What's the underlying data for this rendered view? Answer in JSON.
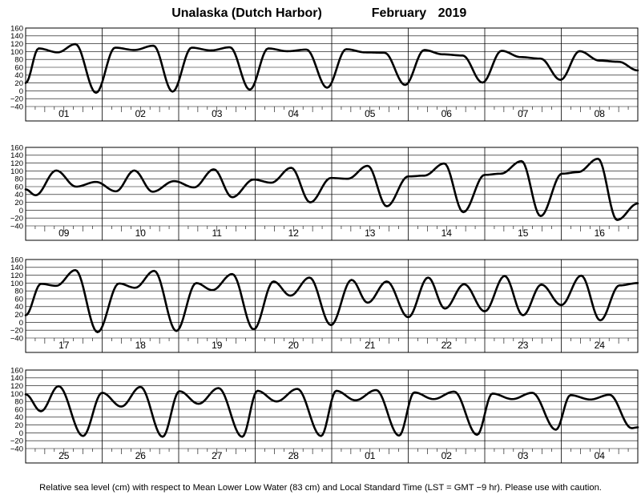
{
  "header": {
    "station": "Unalaska (Dutch Harbor)",
    "month": "February",
    "year": "2019"
  },
  "footer": {
    "note": "Relative sea level (cm) with respect to Mean Lower Low Water (83 cm) and Local Standard Time (LST = GMT −9 hr). Please use with caution."
  },
  "chart_data": [
    {
      "type": "line",
      "title": "",
      "xlabel": "",
      "ylabel": "",
      "ylim": [
        -40,
        160
      ],
      "yticks": [
        "−40",
        "−20",
        "0",
        "20",
        "40",
        "60",
        "80",
        "100",
        "120",
        "140",
        "160"
      ],
      "grid": true,
      "categories": [
        "01",
        "02",
        "03",
        "04",
        "05",
        "06",
        "07",
        "08"
      ],
      "series": [
        {
          "x": [
            0,
            0.17,
            0.42,
            0.65,
            0.92,
            1.17,
            1.42,
            1.67,
            1.92,
            2.17,
            2.42,
            2.67,
            2.93,
            3.17,
            3.42,
            3.67,
            3.94,
            4.19,
            4.44,
            4.69,
            4.96,
            5.21,
            5.45,
            5.71,
            5.97,
            6.22,
            6.47,
            6.73,
            6.99,
            7.24,
            7.5,
            7.75,
            8.0
          ],
          "y": [
            20,
            108,
            98,
            119,
            -5,
            110,
            104,
            115,
            -2,
            110,
            103,
            111,
            3,
            108,
            101,
            105,
            8,
            106,
            98,
            97,
            15,
            104,
            93,
            90,
            21,
            102,
            86,
            82,
            28,
            101,
            77,
            74,
            52
          ]
        }
      ]
    },
    {
      "type": "line",
      "title": "",
      "xlabel": "",
      "ylabel": "",
      "ylim": [
        -40,
        160
      ],
      "yticks": [
        "−40",
        "−20",
        "0",
        "20",
        "40",
        "60",
        "80",
        "100",
        "120",
        "140",
        "160"
      ],
      "grid": true,
      "categories": [
        "09",
        "10",
        "11",
        "12",
        "13",
        "14",
        "15",
        "16"
      ],
      "series": [
        {
          "x": [
            0,
            0.13,
            0.4,
            0.66,
            0.92,
            1.18,
            1.42,
            1.66,
            1.94,
            2.2,
            2.46,
            2.7,
            2.98,
            3.21,
            3.47,
            3.72,
            3.99,
            4.21,
            4.47,
            4.72,
            5.0,
            5.21,
            5.47,
            5.72,
            6.0,
            6.21,
            6.48,
            6.73,
            7.01,
            7.22,
            7.48,
            7.73,
            8.0
          ],
          "y": [
            53,
            38,
            101,
            60,
            72,
            48,
            101,
            47,
            74,
            58,
            104,
            33,
            78,
            70,
            108,
            20,
            82,
            80,
            113,
            10,
            86,
            88,
            119,
            -5,
            90,
            93,
            125,
            -15,
            93,
            97,
            131,
            -25,
            17
          ]
        }
      ]
    },
    {
      "type": "line",
      "title": "",
      "xlabel": "",
      "ylabel": "",
      "ylim": [
        -40,
        160
      ],
      "yticks": [
        "−40",
        "−20",
        "0",
        "20",
        "40",
        "60",
        "80",
        "100",
        "120",
        "140",
        "160"
      ],
      "grid": true,
      "categories": [
        "17",
        "18",
        "19",
        "20",
        "21",
        "22",
        "23",
        "24"
      ],
      "series": [
        {
          "x": [
            0,
            0.2,
            0.4,
            0.65,
            0.94,
            1.22,
            1.43,
            1.68,
            1.97,
            2.23,
            2.44,
            2.7,
            2.98,
            3.24,
            3.46,
            3.71,
            3.99,
            4.26,
            4.47,
            4.72,
            5.0,
            5.26,
            5.48,
            5.73,
            6.0,
            6.26,
            6.5,
            6.74,
            7.0,
            7.26,
            7.51,
            7.76,
            8.0
          ],
          "y": [
            18,
            98,
            93,
            133,
            -25,
            99,
            88,
            131,
            -22,
            100,
            82,
            123,
            -18,
            104,
            68,
            114,
            -7,
            108,
            50,
            104,
            13,
            114,
            35,
            97,
            28,
            118,
            18,
            96,
            44,
            119,
            5,
            94,
            100
          ]
        }
      ]
    },
    {
      "type": "line",
      "title": "",
      "xlabel": "",
      "ylabel": "",
      "ylim": [
        -40,
        160
      ],
      "yticks": [
        "−40",
        "−20",
        "0",
        "20",
        "40",
        "60",
        "80",
        "100",
        "120",
        "140",
        "160"
      ],
      "grid": true,
      "categories": [
        "25",
        "26",
        "27",
        "28",
        "01",
        "02",
        "03",
        "04"
      ],
      "series": [
        {
          "x": [
            0,
            0.2,
            0.43,
            0.75,
            1.0,
            1.25,
            1.5,
            1.79,
            2.01,
            2.26,
            2.52,
            2.83,
            3.03,
            3.28,
            3.55,
            3.86,
            4.06,
            4.31,
            4.58,
            4.88,
            5.08,
            5.33,
            5.6,
            5.9,
            6.1,
            6.36,
            6.62,
            6.93,
            7.12,
            7.38,
            7.63,
            7.92,
            8.0
          ],
          "y": [
            98,
            55,
            119,
            -8,
            102,
            67,
            117,
            -10,
            106,
            74,
            114,
            -10,
            107,
            80,
            112,
            -8,
            107,
            83,
            109,
            -7,
            103,
            86,
            105,
            -5,
            100,
            86,
            102,
            8,
            96,
            85,
            97,
            12,
            14
          ]
        }
      ]
    }
  ]
}
